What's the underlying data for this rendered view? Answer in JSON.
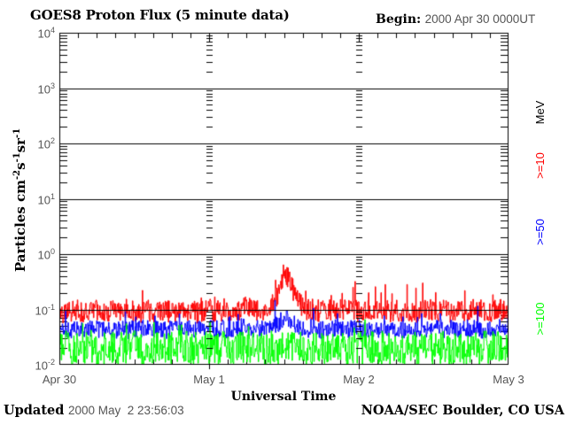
{
  "header": {
    "begin_label": "Begin:",
    "begin_value": "2000 Apr 30 0000UT"
  },
  "footer": {
    "updated_label": "Updated",
    "updated_value": "2000 May  2 23:56:03",
    "credit": "NOAA/SEC Boulder, CO USA"
  },
  "axes": {
    "ylabel_parts": [
      {
        "t": "Particles cm"
      },
      {
        "sup": "-2"
      },
      {
        "t": "s"
      },
      {
        "sup": "-1"
      },
      {
        "t": "sr"
      },
      {
        "sup": "-1"
      }
    ],
    "y_tick_exponents": [
      4,
      3,
      2,
      1,
      0,
      -1,
      -2
    ]
  },
  "right_labels": [
    {
      "text": "MeV",
      "color": "#000000"
    },
    {
      "text": ">=10",
      "color": "#ff0000"
    },
    {
      "text": ">=50",
      "color": "#0000ff"
    },
    {
      "text": ">=100",
      "color": "#00ff00"
    }
  ],
  "chart_data": {
    "type": "line",
    "title": "GOES8 Proton Flux (5 minute data)",
    "xlabel": "Universal Time",
    "ylabel": "Particles cm^-2 s^-1 sr^-1",
    "y_scale": "log",
    "ylim": [
      0.01,
      10000
    ],
    "x_range_hours": [
      0,
      72
    ],
    "sample_interval_minutes": 5,
    "x_tick_labels": [
      "Apr 30",
      "May 1",
      "May 2",
      "May 3"
    ],
    "y_gridlines_at": [
      1000,
      100,
      10,
      1,
      0.1
    ],
    "day_gridline_hours": [
      24,
      48
    ],
    "series": [
      {
        "name": ">=10 MeV",
        "color": "#ff0000",
        "noise_dex": 0.2,
        "spike_prob": 0.06,
        "spike_dex": 0.45,
        "hourly_log10": [
          -1.06,
          -1.03,
          -1.05,
          -1.01,
          -1.05,
          -1.03,
          -1.0,
          -1.05,
          -1.02,
          -1.05,
          -1.03,
          -1.0,
          -1.04,
          -1.06,
          -1.02,
          -1.04,
          -1.0,
          -1.03,
          -1.05,
          -1.02,
          -1.04,
          -1.01,
          -1.05,
          -1.03,
          -1.0,
          -1.04,
          -1.02,
          -1.05,
          -1.01,
          -0.99,
          -0.97,
          -1.0,
          -1.02,
          -0.99,
          -0.93,
          -0.72,
          -0.33,
          -0.52,
          -0.82,
          -0.97,
          -1.02,
          -1.0,
          -1.04,
          -1.01,
          -1.04,
          -1.02,
          -0.99,
          -1.03,
          -1.01,
          -1.04,
          -1.02,
          -1.05,
          -1.01,
          -1.03,
          -1.0,
          -1.04,
          -1.02,
          -1.05,
          -1.01,
          -1.03,
          -1.0,
          -1.04,
          -1.02,
          -1.05,
          -1.01,
          -1.03,
          -1.0,
          -1.04,
          -1.01,
          -1.03,
          -1.0,
          -1.02,
          -0.96
        ]
      },
      {
        "name": ">=50 MeV",
        "color": "#0000ff",
        "noise_dex": 0.16,
        "spike_prob": 0.05,
        "spike_dex": 0.38,
        "hourly_log10": [
          -1.37,
          -1.34,
          -1.38,
          -1.35,
          -1.37,
          -1.33,
          -1.36,
          -1.38,
          -1.34,
          -1.37,
          -1.35,
          -1.38,
          -1.34,
          -1.36,
          -1.33,
          -1.37,
          -1.35,
          -1.38,
          -1.34,
          -1.36,
          -1.33,
          -1.37,
          -1.35,
          -1.38,
          -1.34,
          -1.36,
          -1.33,
          -1.37,
          -1.35,
          -1.34,
          -1.32,
          -1.35,
          -1.33,
          -1.36,
          -1.31,
          -1.28,
          -1.12,
          -1.22,
          -1.3,
          -1.34,
          -1.36,
          -1.33,
          -1.37,
          -1.34,
          -1.36,
          -1.33,
          -1.37,
          -1.35,
          -1.33,
          -1.36,
          -1.34,
          -1.37,
          -1.33,
          -1.36,
          -1.34,
          -1.37,
          -1.33,
          -1.35,
          -1.37,
          -1.34,
          -1.36,
          -1.33,
          -1.37,
          -1.34,
          -1.36,
          -1.33,
          -1.36,
          -1.34,
          -1.37,
          -1.33,
          -1.35,
          -1.33,
          -1.3
        ]
      },
      {
        "name": ">=100 MeV",
        "color": "#00ff00",
        "noise_dex": 0.3,
        "spike_prob": 0.05,
        "spike_dex": 0.3,
        "floor_log10": -2,
        "hourly_log10": [
          -1.72,
          -1.68,
          -1.73,
          -1.69,
          -1.71,
          -1.67,
          -1.72,
          -1.7,
          -1.68,
          -1.73,
          -1.69,
          -1.71,
          -1.68,
          -1.72,
          -1.69,
          -1.73,
          -1.68,
          -1.71,
          -1.69,
          -1.72,
          -1.68,
          -1.71,
          -1.69,
          -1.73,
          -1.68,
          -1.71,
          -1.69,
          -1.72,
          -1.68,
          -1.7,
          -1.68,
          -1.71,
          -1.69,
          -1.72,
          -1.68,
          -1.7,
          -1.66,
          -1.69,
          -1.71,
          -1.68,
          -1.72,
          -1.69,
          -1.71,
          -1.68,
          -1.72,
          -1.69,
          -1.71,
          -1.68,
          -1.7,
          -1.72,
          -1.68,
          -1.71,
          -1.69,
          -1.72,
          -1.68,
          -1.7,
          -1.72,
          -1.68,
          -1.71,
          -1.69,
          -1.72,
          -1.68,
          -1.7,
          -1.72,
          -1.68,
          -1.71,
          -1.69,
          -1.72,
          -1.68,
          -1.7,
          -1.68,
          -1.71,
          -1.69
        ]
      }
    ]
  }
}
